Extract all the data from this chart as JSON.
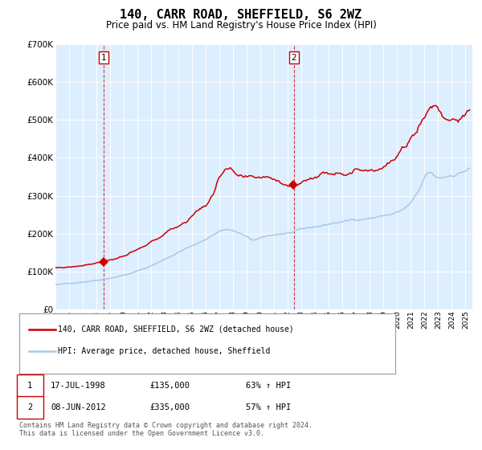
{
  "title": "140, CARR ROAD, SHEFFIELD, S6 2WZ",
  "subtitle": "Price paid vs. HM Land Registry's House Price Index (HPI)",
  "title_fontsize": 11,
  "subtitle_fontsize": 8.5,
  "bg_color": "#ddeeff",
  "grid_color": "#ffffff",
  "hpi_color": "#aac8e8",
  "house_color": "#cc0000",
  "ylim": [
    0,
    700000
  ],
  "yticks": [
    0,
    100000,
    200000,
    300000,
    400000,
    500000,
    600000,
    700000
  ],
  "ytick_labels": [
    "£0",
    "£100K",
    "£200K",
    "£300K",
    "£400K",
    "£500K",
    "£600K",
    "£700K"
  ],
  "sale1": {
    "date_num": 1998.54,
    "price": 135000,
    "label": "1",
    "date_str": "17-JUL-1998",
    "pct": "63% ↑ HPI"
  },
  "sale2": {
    "date_num": 2012.44,
    "price": 335000,
    "label": "2",
    "date_str": "08-JUN-2012",
    "pct": "57% ↑ HPI"
  },
  "legend_house": "140, CARR ROAD, SHEFFIELD, S6 2WZ (detached house)",
  "legend_hpi": "HPI: Average price, detached house, Sheffield",
  "footer": "Contains HM Land Registry data © Crown copyright and database right 2024.\nThis data is licensed under the Open Government Licence v3.0.",
  "xmin": 1995.0,
  "xmax": 2025.5
}
